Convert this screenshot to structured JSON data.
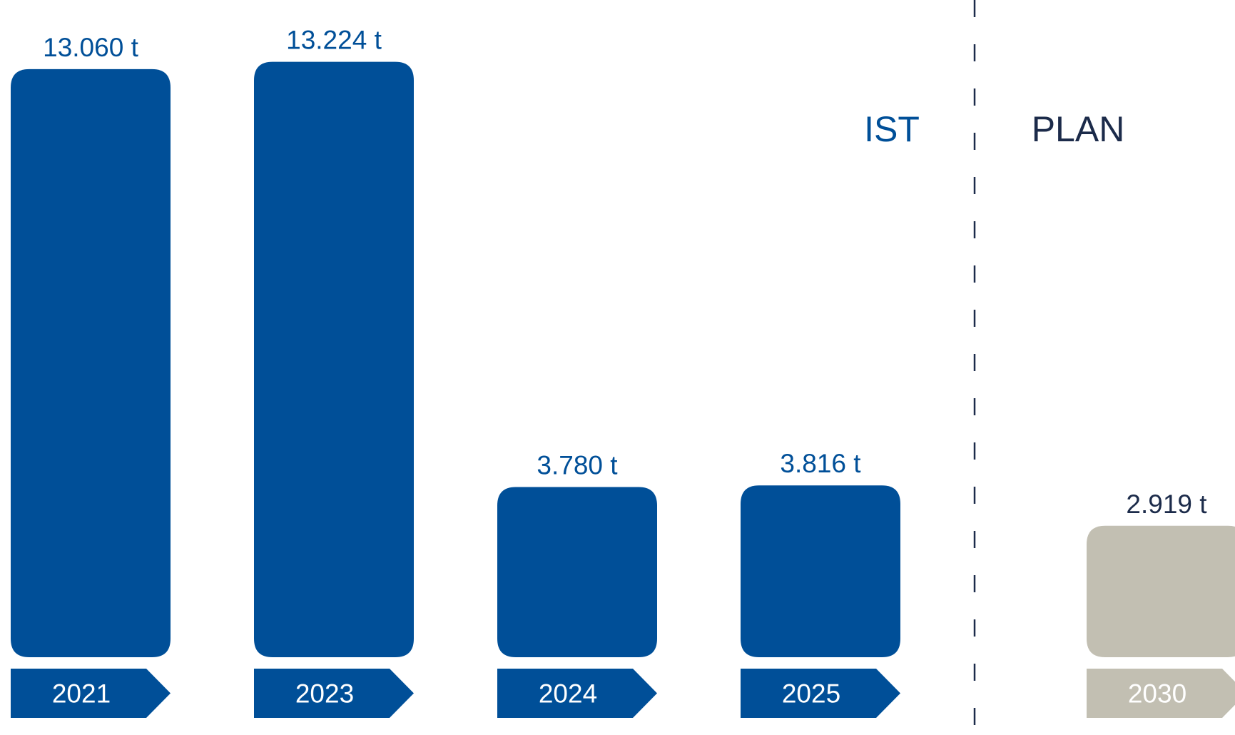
{
  "chart_data": {
    "type": "bar",
    "categories": [
      "2021",
      "2023",
      "2024",
      "2025",
      "2030"
    ],
    "values": [
      13060,
      13224,
      3780,
      3816,
      2919
    ],
    "value_labels": [
      "13.060 t",
      "13.224 t",
      "3.780 t",
      "3.816 t",
      "2.919 t"
    ],
    "category_group": [
      "ist",
      "ist",
      "ist",
      "ist",
      "plan"
    ],
    "unit": "t",
    "sections": {
      "ist": "IST",
      "plan": "PLAN"
    },
    "legend": "none",
    "grid": false
  },
  "colors": {
    "ist_bar": "#004f98",
    "plan_bar": "#c2bfb2",
    "ist_value_label": "#004f98",
    "plan_value_label": "#1c2b4a",
    "ist_section_label": "#004f98",
    "plan_section_label": "#1c2b4a",
    "category_tag_text": "#ffffff",
    "divider": "#1c2b4a",
    "background": "#ffffff"
  }
}
